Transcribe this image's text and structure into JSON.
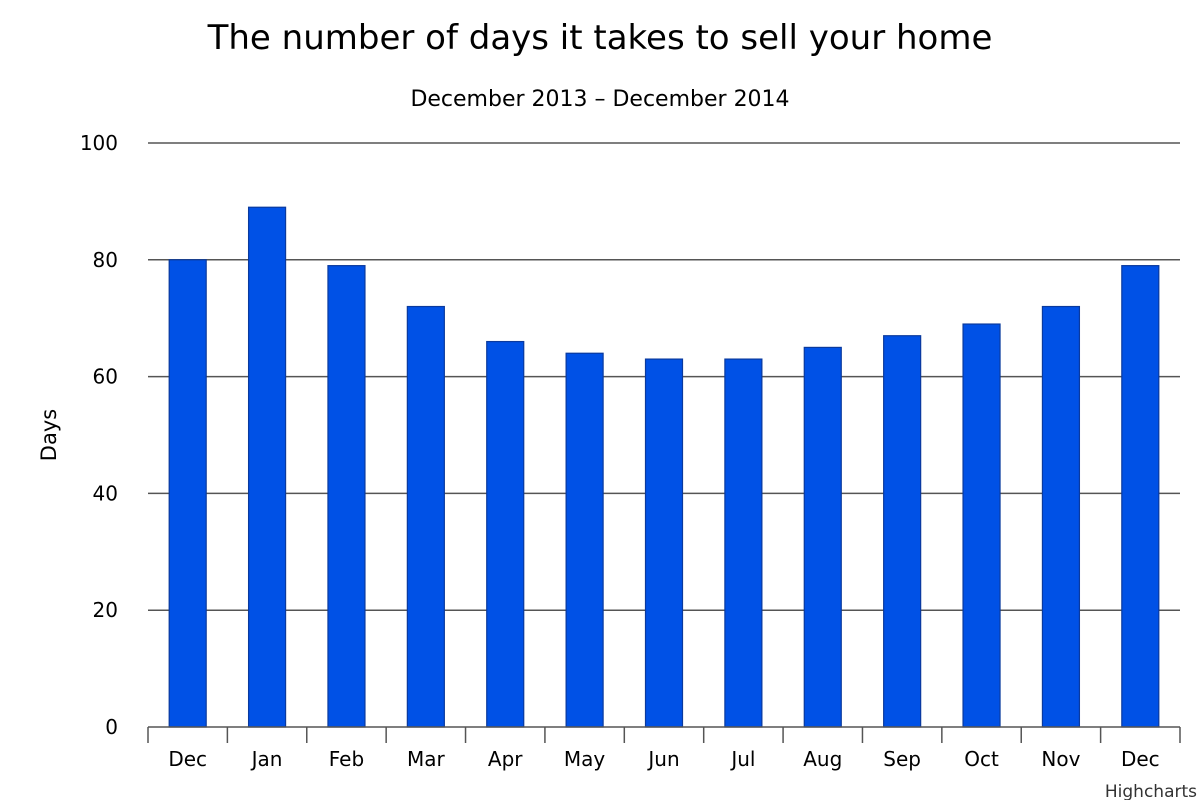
{
  "chart_data": {
    "type": "bar",
    "title": "The number of days it takes to sell your home",
    "subtitle": "December 2013 – December 2014",
    "xlabel": "",
    "ylabel": "Days",
    "categories": [
      "Dec",
      "Jan",
      "Feb",
      "Mar",
      "Apr",
      "May",
      "Jun",
      "Jul",
      "Aug",
      "Sep",
      "Oct",
      "Nov",
      "Dec"
    ],
    "values": [
      80,
      89,
      79,
      72,
      66,
      64,
      63,
      63,
      65,
      67,
      69,
      72,
      79
    ],
    "ylim": [
      0,
      100
    ],
    "yticks": [
      0,
      20,
      40,
      60,
      80,
      100
    ],
    "grid": true,
    "legend": "none",
    "bar_color": "#0051e6",
    "bar_border_color": "#0a3a9e"
  },
  "credits": "Highcharts"
}
